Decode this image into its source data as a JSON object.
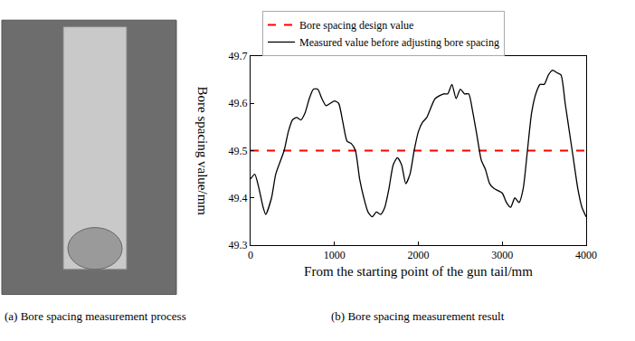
{
  "chart_data": {
    "type": "line",
    "x_label": "From the starting point of the gun tail/mm",
    "y_label": "Bore spacing value/mm",
    "annotations": [
      "(a) Bore spacing measurement process",
      "(b) Bore spacing measurement result"
    ],
    "xlim": [
      0,
      4000
    ],
    "ylim": [
      49.3,
      49.7
    ],
    "xticks": [
      0,
      1000,
      2000,
      3000,
      4000
    ],
    "yticks": [
      49.3,
      49.4,
      49.5,
      49.6,
      49.7
    ],
    "grid": false,
    "legend": "top",
    "series": [
      {
        "name": "Bore spacing design value",
        "color": "#ff0000",
        "line_style": "dash",
        "x": [
          0,
          4000
        ],
        "values": [
          49.5,
          49.5
        ]
      },
      {
        "name": "Measured value before adjusting bore spacing",
        "color": "#000000",
        "line_style": "solid",
        "x": [
          0,
          50,
          100,
          150,
          180,
          250,
          300,
          400,
          450,
          500,
          550,
          600,
          650,
          700,
          750,
          800,
          850,
          900,
          950,
          1000,
          1050,
          1100,
          1150,
          1200,
          1250,
          1300,
          1350,
          1400,
          1450,
          1500,
          1550,
          1600,
          1650,
          1700,
          1750,
          1800,
          1850,
          1900,
          1950,
          2000,
          2050,
          2100,
          2200,
          2300,
          2350,
          2400,
          2450,
          2500,
          2550,
          2600,
          2650,
          2700,
          2750,
          2800,
          2850,
          2900,
          3000,
          3050,
          3100,
          3150,
          3200,
          3250,
          3300,
          3350,
          3400,
          3450,
          3500,
          3550,
          3600,
          3650,
          3700,
          3750,
          3800,
          3850,
          3900,
          3950,
          4000
        ],
        "values": [
          49.44,
          49.45,
          49.42,
          49.38,
          49.365,
          49.4,
          49.45,
          49.5,
          49.54,
          49.565,
          49.57,
          49.565,
          49.58,
          49.61,
          49.63,
          49.63,
          49.61,
          49.595,
          49.6,
          49.605,
          49.6,
          49.56,
          49.52,
          49.515,
          49.5,
          49.44,
          49.4,
          49.37,
          49.36,
          49.37,
          49.365,
          49.38,
          49.42,
          49.47,
          49.485,
          49.47,
          49.43,
          49.45,
          49.5,
          49.54,
          49.56,
          49.57,
          49.61,
          49.62,
          49.62,
          49.64,
          49.61,
          49.63,
          49.62,
          49.62,
          49.58,
          49.53,
          49.48,
          49.46,
          49.43,
          49.42,
          49.41,
          49.39,
          49.38,
          49.4,
          49.39,
          49.42,
          49.5,
          49.58,
          49.62,
          49.64,
          49.64,
          49.66,
          49.67,
          49.665,
          49.66,
          49.6,
          49.54,
          49.48,
          49.42,
          49.38,
          49.36
        ]
      }
    ]
  }
}
